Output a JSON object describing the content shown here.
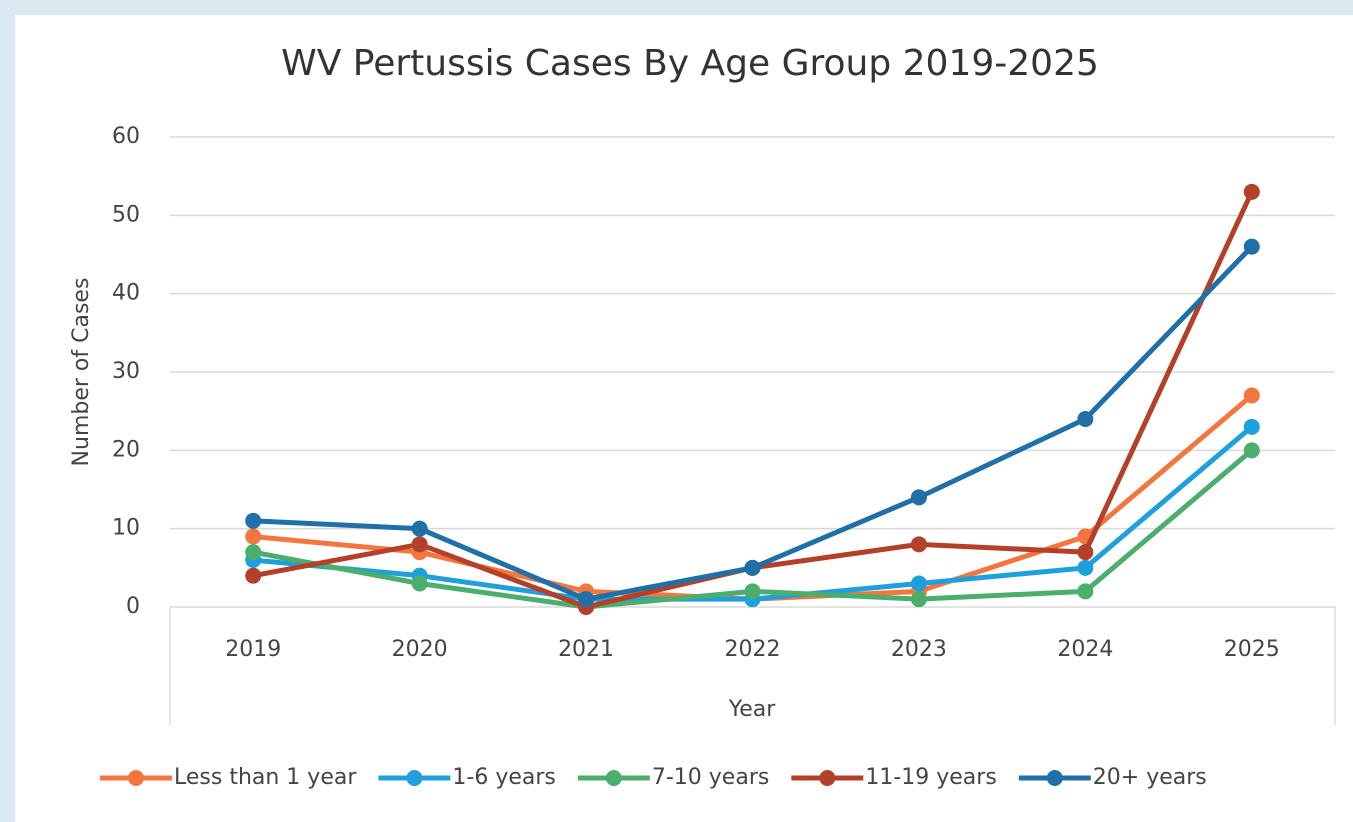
{
  "chart_data": {
    "type": "line",
    "title": "WV Pertussis Cases By Age Group 2019-2025",
    "x_label": "Year",
    "y_label": "Number of Cases",
    "categories": [
      "2019",
      "2020",
      "2021",
      "2022",
      "2023",
      "2024",
      "2025"
    ],
    "series": [
      {
        "name": "Less than 1 year",
        "color": "#f4763f",
        "values": [
          9,
          7,
          2,
          1,
          2,
          9,
          27
        ]
      },
      {
        "name": "1-6 years",
        "color": "#1fa0dc",
        "values": [
          6,
          4,
          1,
          1,
          3,
          5,
          23
        ]
      },
      {
        "name": "7-10 years",
        "color": "#4cae6c",
        "values": [
          7,
          3,
          0,
          2,
          1,
          2,
          20
        ]
      },
      {
        "name": "11-19 years",
        "color": "#b5402a",
        "values": [
          4,
          8,
          0,
          5,
          8,
          7,
          53
        ]
      },
      {
        "name": "20+ years",
        "color": "#1f6fa8",
        "values": [
          11,
          10,
          1,
          5,
          14,
          24,
          46
        ]
      }
    ],
    "ylim": [
      0,
      60
    ],
    "yticks": [
      0,
      10,
      20,
      30,
      40,
      50,
      60
    ],
    "grid": true,
    "legend": "bottom"
  }
}
